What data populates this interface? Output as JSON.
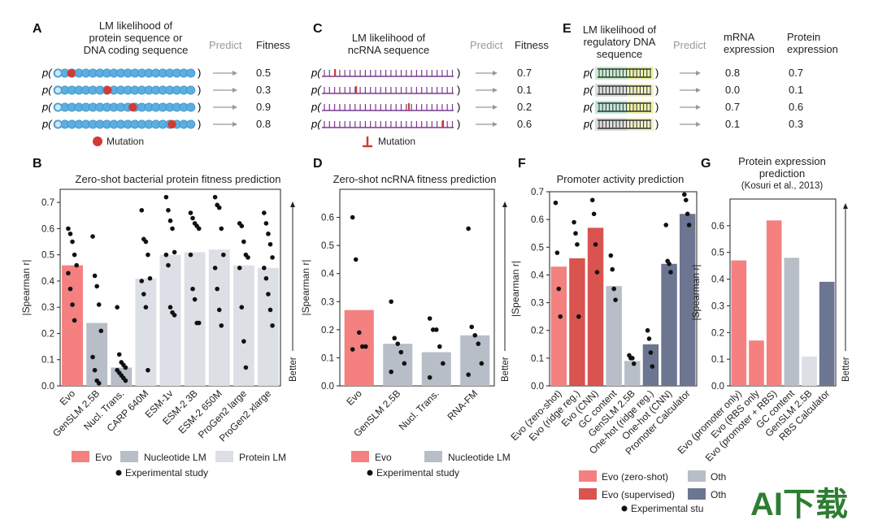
{
  "colors": {
    "evo": "#f48080",
    "evo_dark": "#d9534f",
    "nucleotide": "#b8bec8",
    "protein": "#dcdfe5",
    "other_dark": "#6c7691",
    "point": "#111111",
    "mutation": "#d23b34",
    "seq_blue": "#5aaee0"
  },
  "watermark": "AI下载",
  "panel_a": {
    "label": "A",
    "title_lines": [
      "LM likelihood of",
      "protein sequence or",
      "DNA coding sequence"
    ],
    "predict": "Predict",
    "col_header": "Fitness",
    "rows": [
      {
        "value": "0.5",
        "mut": 0.12
      },
      {
        "value": "0.3",
        "mut": 0.38
      },
      {
        "value": "0.9",
        "mut": 0.56
      },
      {
        "value": "0.8",
        "mut": 0.84
      }
    ],
    "legend": "Mutation",
    "p_label": "p("
  },
  "panel_c": {
    "label": "C",
    "title_lines": [
      "LM likelihood of",
      "ncRNA sequence"
    ],
    "predict": "Predict",
    "col_header": "Fitness",
    "rows": [
      {
        "value": "0.7",
        "mut": 0.1
      },
      {
        "value": "0.1",
        "mut": 0.26
      },
      {
        "value": "0.2",
        "mut": 0.66
      },
      {
        "value": "0.6",
        "mut": 0.92
      }
    ],
    "legend": "Mutation",
    "p_label": "p("
  },
  "panel_e": {
    "label": "E",
    "title_lines": [
      "LM likelihood of",
      "regulatory DNA",
      "sequence"
    ],
    "predict": "Predict",
    "col_headers": [
      [
        "mRNA",
        "expression"
      ],
      [
        "Protein",
        "expression"
      ]
    ],
    "rows": [
      {
        "mrna": "0.8",
        "protein": "0.7"
      },
      {
        "mrna": "0.0",
        "protein": "0.1"
      },
      {
        "mrna": "0.7",
        "protein": "0.6"
      },
      {
        "mrna": "0.1",
        "protein": "0.3"
      }
    ],
    "p_label": "p("
  },
  "chart_data": [
    {
      "panel": "B",
      "type": "bar",
      "title": "Zero-shot bacterial protein fitness prediction",
      "ylabel": "|Spearman r|",
      "better": "Better",
      "ylim": [
        0,
        0.75
      ],
      "yticks": [
        "0.0",
        "0.1",
        "0.2",
        "0.3",
        "0.4",
        "0.5",
        "0.6",
        "0.7"
      ],
      "categories": [
        "Evo",
        "GenSLM 2.5B",
        "Nucl. Trans.",
        "CARP 640M",
        "ESM-1v",
        "ESM-2 3B",
        "ESM-2 650M",
        "ProGen2 large",
        "ProGen2 xlarge"
      ],
      "values": [
        0.46,
        0.24,
        0.07,
        0.41,
        0.5,
        0.51,
        0.52,
        0.46,
        0.45
      ],
      "groups": [
        "evo",
        "nucleotide",
        "nucleotide",
        "protein",
        "protein",
        "protein",
        "protein",
        "protein",
        "protein"
      ],
      "points": [
        [
          0.6,
          0.58,
          0.55,
          0.5,
          0.46,
          0.43,
          0.37,
          0.31,
          0.25
        ],
        [
          0.57,
          0.42,
          0.38,
          0.31,
          0.21,
          0.11,
          0.06,
          0.02,
          0.01
        ],
        [
          0.3,
          0.12,
          0.09,
          0.08,
          0.07,
          0.06,
          0.05,
          0.04,
          0.03,
          0.02
        ],
        [
          0.67,
          0.56,
          0.55,
          0.5,
          0.41,
          0.4,
          0.35,
          0.3,
          0.06
        ],
        [
          0.72,
          0.67,
          0.63,
          0.6,
          0.51,
          0.5,
          0.46,
          0.3,
          0.28,
          0.27
        ],
        [
          0.66,
          0.64,
          0.62,
          0.61,
          0.6,
          0.5,
          0.37,
          0.33,
          0.24,
          0.24
        ],
        [
          0.72,
          0.69,
          0.68,
          0.6,
          0.5,
          0.45,
          0.37,
          0.29,
          0.23
        ],
        [
          0.62,
          0.61,
          0.55,
          0.5,
          0.49,
          0.45,
          0.3,
          0.17,
          0.07
        ],
        [
          0.66,
          0.62,
          0.58,
          0.54,
          0.49,
          0.45,
          0.41,
          0.35,
          0.29,
          0.23
        ]
      ],
      "legend": [
        {
          "label": "Evo",
          "group": "evo"
        },
        {
          "label": "Nucleotide LM",
          "group": "nucleotide"
        },
        {
          "label": "Protein LM",
          "group": "protein"
        }
      ],
      "legend_points": "Experimental study"
    },
    {
      "panel": "D",
      "type": "bar",
      "title": "Zero-shot ncRNA fitness prediction",
      "ylabel": "|Spearman r|",
      "better": "Better",
      "ylim": [
        0,
        0.7
      ],
      "yticks": [
        "0.0",
        "0.1",
        "0.2",
        "0.3",
        "0.4",
        "0.5",
        "0.6"
      ],
      "categories": [
        "Evo",
        "GenSLM 2.5B",
        "Nucl. Trans.",
        "RNA-FM"
      ],
      "values": [
        0.27,
        0.15,
        0.12,
        0.18
      ],
      "groups": [
        "evo",
        "nucleotide",
        "nucleotide",
        "nucleotide"
      ],
      "points": [
        [
          0.6,
          0.45,
          0.19,
          0.14,
          0.14,
          0.13
        ],
        [
          0.3,
          0.17,
          0.15,
          0.12,
          0.08,
          0.05
        ],
        [
          0.24,
          0.2,
          0.2,
          0.14,
          0.08,
          0.03
        ],
        [
          0.56,
          0.21,
          0.18,
          0.15,
          0.08,
          0.04
        ]
      ],
      "legend": [
        {
          "label": "Evo",
          "group": "evo"
        },
        {
          "label": "Nucleotide LM",
          "group": "nucleotide"
        }
      ],
      "legend_points": "Experimental study"
    },
    {
      "panel": "F",
      "type": "bar",
      "title": "Promoter activity prediction",
      "ylabel": "|Spearman r|",
      "ylim": [
        0,
        0.7
      ],
      "yticks": [
        "0.0",
        "0.1",
        "0.2",
        "0.3",
        "0.4",
        "0.5",
        "0.6",
        "0.7"
      ],
      "categories": [
        "Evo (zero-shot)",
        "Evo (ridge reg.)",
        "Evo (CNN)",
        "GC content",
        "GenSLM 2.5B",
        "One-hot (ridge reg.)",
        "One-hot (CNN)",
        "Promoter Calculator"
      ],
      "values": [
        0.43,
        0.46,
        0.57,
        0.36,
        0.09,
        0.15,
        0.44,
        0.62
      ],
      "groups": [
        "evo",
        "evo_dark",
        "evo_dark",
        "nucleotide",
        "nucleotide",
        "other_dark",
        "other_dark",
        "other_dark"
      ],
      "points": [
        [
          0.66,
          0.48,
          0.35,
          0.25
        ],
        [
          0.59,
          0.55,
          0.51,
          0.25
        ],
        [
          0.67,
          0.62,
          0.51,
          0.41
        ],
        [
          0.47,
          0.42,
          0.35,
          0.31
        ],
        [
          0.11,
          0.1,
          0.1,
          0.08
        ],
        [
          0.2,
          0.17,
          0.12,
          0.07
        ],
        [
          0.58,
          0.45,
          0.44,
          0.41
        ],
        [
          0.69,
          0.67,
          0.62,
          0.58
        ]
      ],
      "legend": [
        {
          "label": "Evo (zero-shot)",
          "group": "evo"
        },
        {
          "label": "Evo (supervised)",
          "group": "evo_dark"
        },
        {
          "label": "Oth",
          "group": "nucleotide"
        },
        {
          "label": "Oth",
          "group": "other_dark"
        }
      ],
      "legend_points": "Experimental stu"
    },
    {
      "panel": "G",
      "type": "bar",
      "title": "Protein expression prediction",
      "subtitle": "(Kosuri et al., 2013)",
      "ylabel": "|Spearman r|",
      "better": "Better",
      "ylim": [
        0,
        0.7
      ],
      "yticks": [
        "0.0",
        "0.1",
        "0.2",
        "0.3",
        "0.4",
        "0.5",
        "0.6"
      ],
      "categories": [
        "Evo (promoter only)",
        "Evo (RBS only",
        "Evo (promoter + RBS)",
        "GC content",
        "GenSLM 2.5B",
        "RBS Calculator"
      ],
      "values": [
        0.47,
        0.17,
        0.62,
        0.48,
        0.11,
        0.39
      ],
      "groups": [
        "evo",
        "evo",
        "evo",
        "nucleotide",
        "protein",
        "other_dark"
      ]
    }
  ]
}
